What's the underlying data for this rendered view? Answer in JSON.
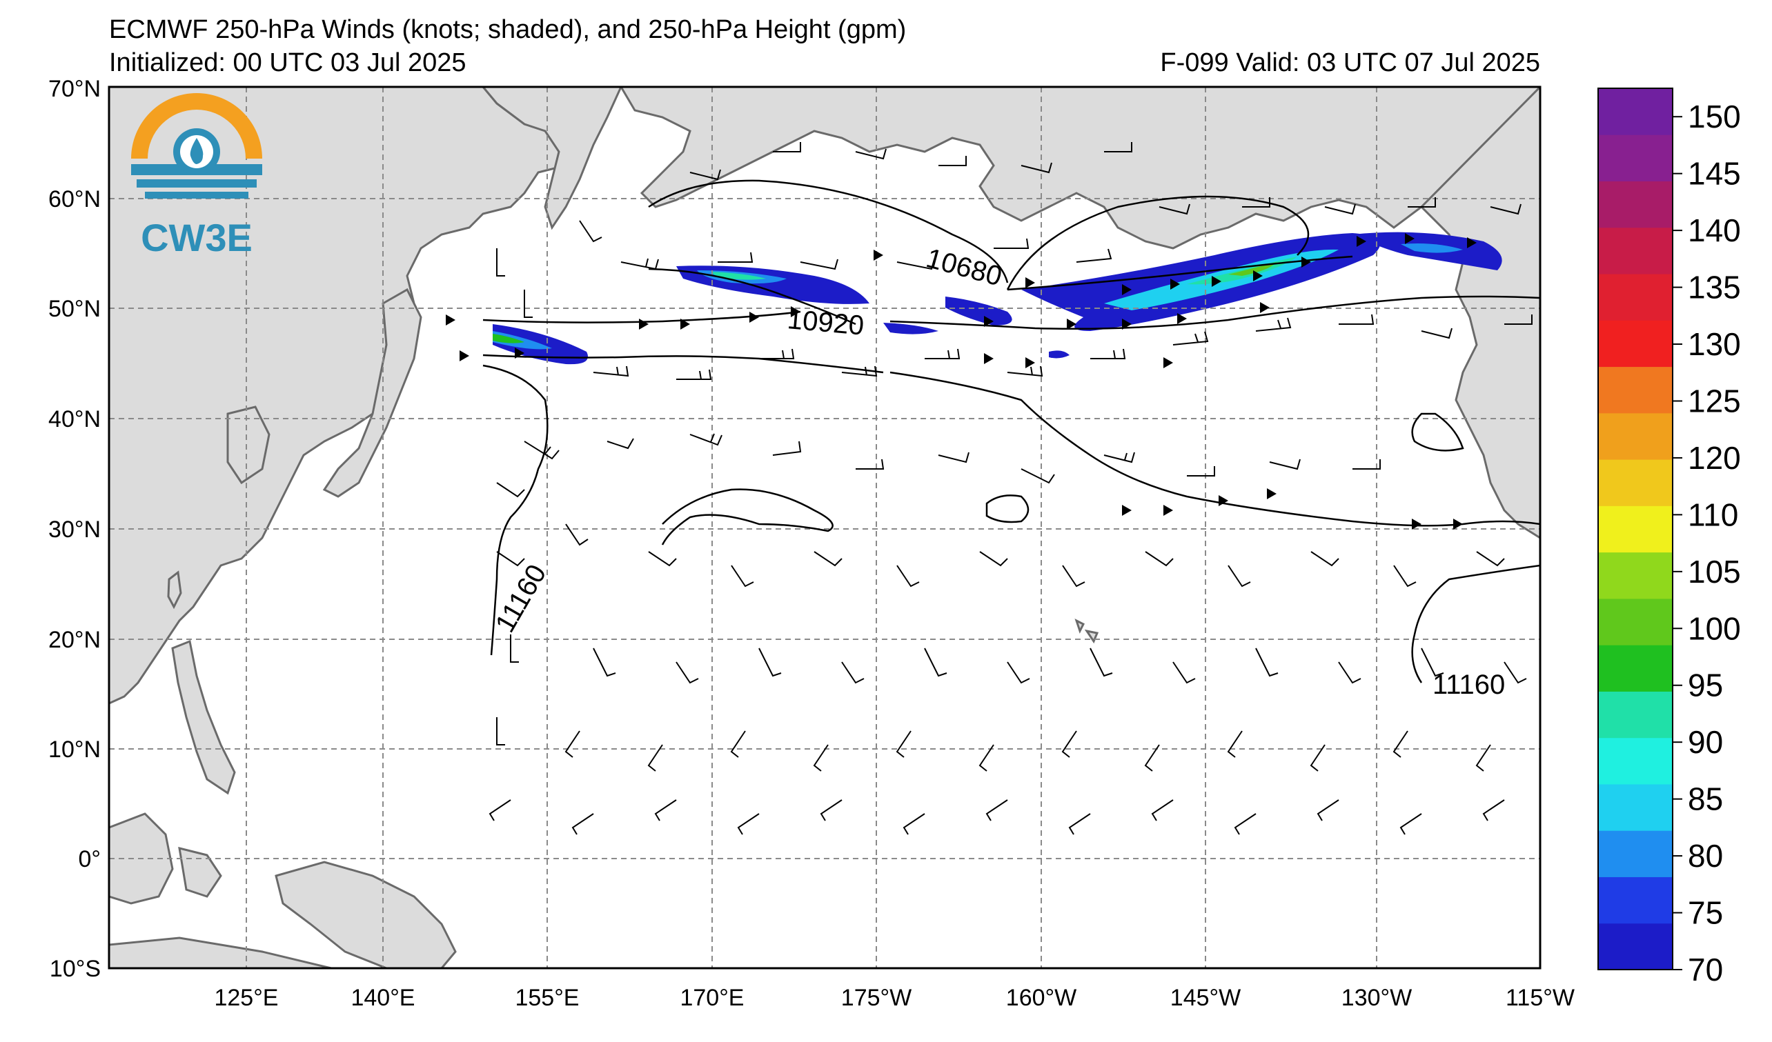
{
  "header": {
    "title": "ECMWF 250-hPa Winds (knots; shaded), and 250-hPa Height (gpm)",
    "initialized": "Initialized: 00 UTC 03 Jul 2025",
    "valid": "F-099  Valid: 03 UTC 07 Jul 2025"
  },
  "logo": {
    "text": "CW3E"
  },
  "axes": {
    "lat_labels": [
      "70°N",
      "60°N",
      "50°N",
      "40°N",
      "30°N",
      "20°N",
      "10°N",
      "0°",
      "10°S"
    ],
    "lon_labels": [
      "125°E",
      "140°E",
      "155°E",
      "170°E",
      "175°W",
      "160°W",
      "145°W",
      "130°W",
      "115°W"
    ]
  },
  "contours": {
    "labels": [
      "10680",
      "10920",
      "11160",
      "11160"
    ]
  },
  "colorbar": {
    "ticks": [
      "70",
      "75",
      "80",
      "85",
      "90",
      "95",
      "100",
      "105",
      "110",
      "120",
      "125",
      "130",
      "135",
      "140",
      "145",
      "150"
    ],
    "colors": [
      "#1c1cc8",
      "#1f3ce6",
      "#1f8ef0",
      "#1fd0f0",
      "#1ff0e0",
      "#20e0a8",
      "#1fc020",
      "#60c81c",
      "#90d81c",
      "#f0f01c",
      "#f0c81c",
      "#f0a01c",
      "#f07820",
      "#f02020",
      "#e02030",
      "#c81c48",
      "#a81c68",
      "#882090",
      "#7020a0"
    ]
  },
  "colors": {
    "land": "#dcdcdc",
    "coast": "#6a6a6a",
    "grid": "#8a8a8a",
    "contour": "#000000"
  }
}
